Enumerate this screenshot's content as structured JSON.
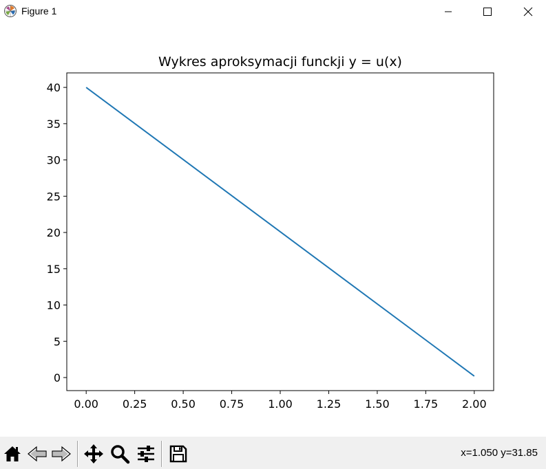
{
  "window": {
    "title": "Figure 1"
  },
  "toolbar": {
    "coords": "x=1.050 y=31.85",
    "buttons": [
      "home-icon",
      "back-icon",
      "forward-icon",
      "pan-icon",
      "zoom-icon",
      "configure-subplots-icon",
      "save-icon"
    ]
  },
  "colors": {
    "line": "#1f77b4",
    "toolbar_bg": "#f0f0f0"
  },
  "chart_data": {
    "type": "line",
    "title": "Wykres aproksymacji funckji y = u(x)",
    "xlabel": "",
    "ylabel": "",
    "x": [
      0.0,
      2.0
    ],
    "series": [
      {
        "values": [
          40.0,
          0.2
        ]
      }
    ],
    "xlim": [
      -0.1,
      2.1
    ],
    "ylim": [
      -1.8,
      42.0
    ],
    "xticks": [
      0.0,
      0.25,
      0.5,
      0.75,
      1.0,
      1.25,
      1.5,
      1.75,
      2.0
    ],
    "xtick_labels": [
      "0.00",
      "0.25",
      "0.50",
      "0.75",
      "1.00",
      "1.25",
      "1.50",
      "1.75",
      "2.00"
    ],
    "yticks": [
      0,
      5,
      10,
      15,
      20,
      25,
      30,
      35,
      40
    ],
    "ytick_labels": [
      "0",
      "5",
      "10",
      "15",
      "20",
      "25",
      "30",
      "35",
      "40"
    ],
    "grid": false,
    "legend": "none"
  }
}
